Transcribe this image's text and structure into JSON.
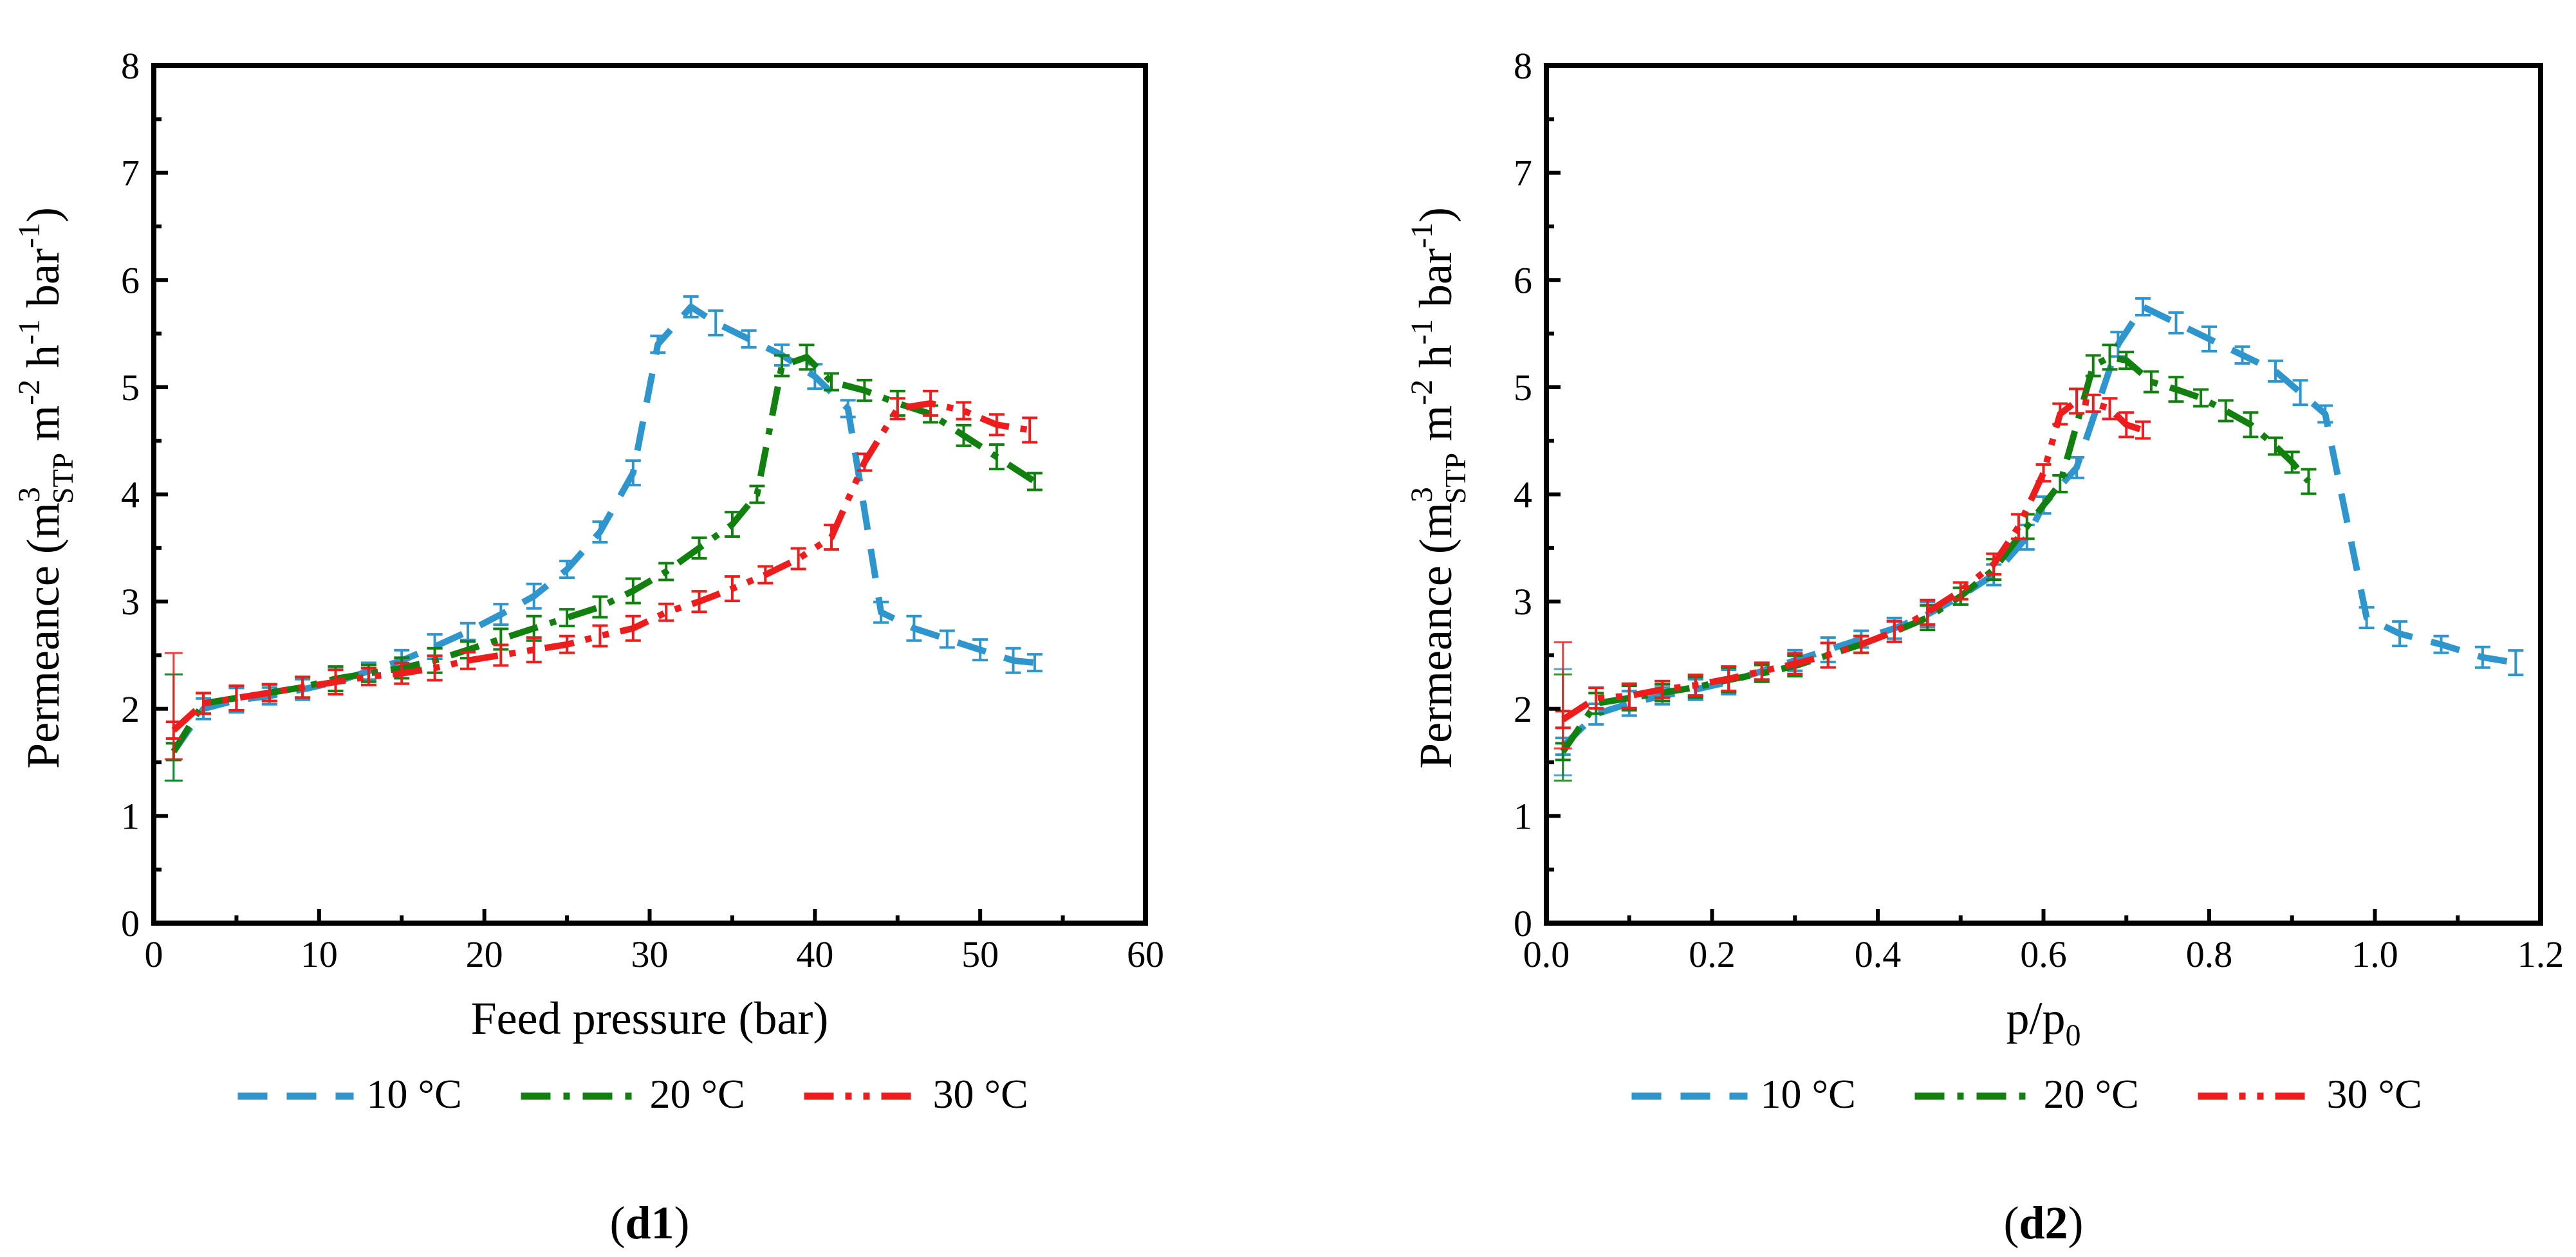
{
  "chart_data": [
    {
      "type": "line",
      "panel_label": "d1",
      "xlabel": "Feed pressure (bar)",
      "ylabel": {
        "pre": "Permeance (m",
        "sup1": "3",
        "sub1": "STP",
        "mid1": " m",
        "sup2": "-2",
        "mid2": " h",
        "sup3": "-1",
        "mid3": " bar",
        "sup4": "-1",
        "post": ")"
      },
      "xlim": [
        0,
        60
      ],
      "ylim": [
        0,
        8
      ],
      "xticks": [
        "0",
        "10",
        "20",
        "30",
        "40",
        "50",
        "60"
      ],
      "yticks": [
        "0",
        "1",
        "2",
        "3",
        "4",
        "5",
        "6",
        "7",
        "8"
      ],
      "series": [
        {
          "name": "10 °C",
          "color": "#2e95cd",
          "dash": "dash",
          "x": [
            1.2,
            3,
            5,
            7,
            9,
            11,
            13,
            15,
            17,
            19,
            21,
            23,
            25,
            27,
            29,
            30.5,
            32.5,
            34,
            36,
            38,
            40,
            42,
            44,
            46,
            48,
            50,
            52,
            53.3
          ],
          "y": [
            1.6,
            2.0,
            2.08,
            2.12,
            2.18,
            2.25,
            2.35,
            2.45,
            2.58,
            2.72,
            2.88,
            3.05,
            3.3,
            3.65,
            4.2,
            5.4,
            5.75,
            5.6,
            5.45,
            5.3,
            5.1,
            4.8,
            2.9,
            2.75,
            2.65,
            2.55,
            2.45,
            2.43
          ]
        },
        {
          "name": "20 °C",
          "color": "#11800f",
          "dash": "dashdot",
          "x": [
            1.2,
            3,
            5,
            7,
            9,
            11,
            13,
            15,
            17,
            19,
            21,
            23,
            25,
            27,
            29,
            31,
            33,
            35,
            36.5,
            38,
            39.5,
            41,
            43,
            45,
            47,
            49,
            51,
            53.3
          ],
          "y": [
            1.6,
            2.05,
            2.1,
            2.15,
            2.2,
            2.28,
            2.33,
            2.38,
            2.45,
            2.55,
            2.65,
            2.75,
            2.85,
            2.95,
            3.1,
            3.28,
            3.5,
            3.72,
            4.0,
            5.2,
            5.28,
            5.05,
            4.97,
            4.85,
            4.75,
            4.55,
            4.35,
            4.12
          ]
        },
        {
          "name": "30 °C",
          "color": "#ee1d1d",
          "dash": "dashdotdot",
          "x": [
            1.2,
            3,
            5,
            7,
            9,
            11,
            13,
            15,
            17,
            19,
            21,
            23,
            25,
            27,
            29,
            31,
            33,
            35,
            37,
            39,
            41,
            43,
            45,
            47,
            49,
            51,
            53
          ],
          "y": [
            1.8,
            2.05,
            2.1,
            2.15,
            2.2,
            2.25,
            2.3,
            2.33,
            2.38,
            2.45,
            2.5,
            2.55,
            2.6,
            2.68,
            2.75,
            2.9,
            3.0,
            3.12,
            3.25,
            3.4,
            3.6,
            4.3,
            4.8,
            4.85,
            4.78,
            4.65,
            4.6
          ]
        }
      ]
    },
    {
      "type": "line",
      "panel_label": "d2",
      "xlabel_base": "p/p",
      "xlabel_sub": "0",
      "ylabel": {
        "pre": "Permeance (m",
        "sup1": "3",
        "sub1": "STP",
        "mid1": " m",
        "sup2": "-2",
        "mid2": " h",
        "sup3": "-1",
        "mid3": " bar",
        "sup4": "-1",
        "post": ")"
      },
      "xlim": [
        0,
        1.2
      ],
      "ylim": [
        0,
        8
      ],
      "xticks": [
        "0.0",
        "0.2",
        "0.4",
        "0.6",
        "0.8",
        "1.0",
        "1.2"
      ],
      "yticks": [
        "0",
        "1",
        "2",
        "3",
        "4",
        "5",
        "6",
        "7",
        "8"
      ],
      "series": [
        {
          "name": "10 °C",
          "color": "#2e95cd",
          "dash": "dash",
          "x": [
            0.02,
            0.06,
            0.1,
            0.14,
            0.18,
            0.22,
            0.26,
            0.3,
            0.34,
            0.38,
            0.42,
            0.46,
            0.5,
            0.54,
            0.58,
            0.6,
            0.64,
            0.69,
            0.72,
            0.76,
            0.8,
            0.84,
            0.88,
            0.91,
            0.94,
            0.99,
            1.03,
            1.08,
            1.13,
            1.17
          ],
          "y": [
            1.65,
            1.95,
            2.05,
            2.12,
            2.18,
            2.25,
            2.35,
            2.45,
            2.55,
            2.65,
            2.75,
            2.88,
            3.05,
            3.25,
            3.6,
            3.9,
            4.25,
            5.4,
            5.75,
            5.6,
            5.45,
            5.3,
            5.15,
            4.95,
            4.75,
            2.85,
            2.7,
            2.6,
            2.48,
            2.43
          ]
        },
        {
          "name": "20 °C",
          "color": "#11800f",
          "dash": "dashdot",
          "x": [
            0.02,
            0.06,
            0.1,
            0.14,
            0.18,
            0.22,
            0.26,
            0.3,
            0.34,
            0.38,
            0.42,
            0.46,
            0.5,
            0.54,
            0.58,
            0.62,
            0.66,
            0.68,
            0.7,
            0.73,
            0.76,
            0.79,
            0.82,
            0.85,
            0.88,
            0.9,
            0.92
          ],
          "y": [
            1.6,
            2.05,
            2.1,
            2.15,
            2.2,
            2.27,
            2.33,
            2.4,
            2.5,
            2.6,
            2.72,
            2.85,
            3.05,
            3.3,
            3.7,
            4.1,
            5.2,
            5.28,
            5.25,
            5.05,
            4.98,
            4.9,
            4.78,
            4.65,
            4.45,
            4.3,
            4.12
          ]
        },
        {
          "name": "30 °C",
          "color": "#ee1d1d",
          "dash": "dashdotdot",
          "x": [
            0.02,
            0.06,
            0.1,
            0.14,
            0.18,
            0.22,
            0.26,
            0.3,
            0.34,
            0.38,
            0.42,
            0.46,
            0.5,
            0.54,
            0.57,
            0.6,
            0.62,
            0.64,
            0.66,
            0.68,
            0.7,
            0.72
          ],
          "y": [
            1.9,
            2.1,
            2.12,
            2.18,
            2.22,
            2.28,
            2.35,
            2.42,
            2.5,
            2.6,
            2.72,
            2.9,
            3.1,
            3.35,
            3.7,
            4.2,
            4.75,
            4.87,
            4.85,
            4.8,
            4.65,
            4.6
          ]
        }
      ]
    }
  ]
}
